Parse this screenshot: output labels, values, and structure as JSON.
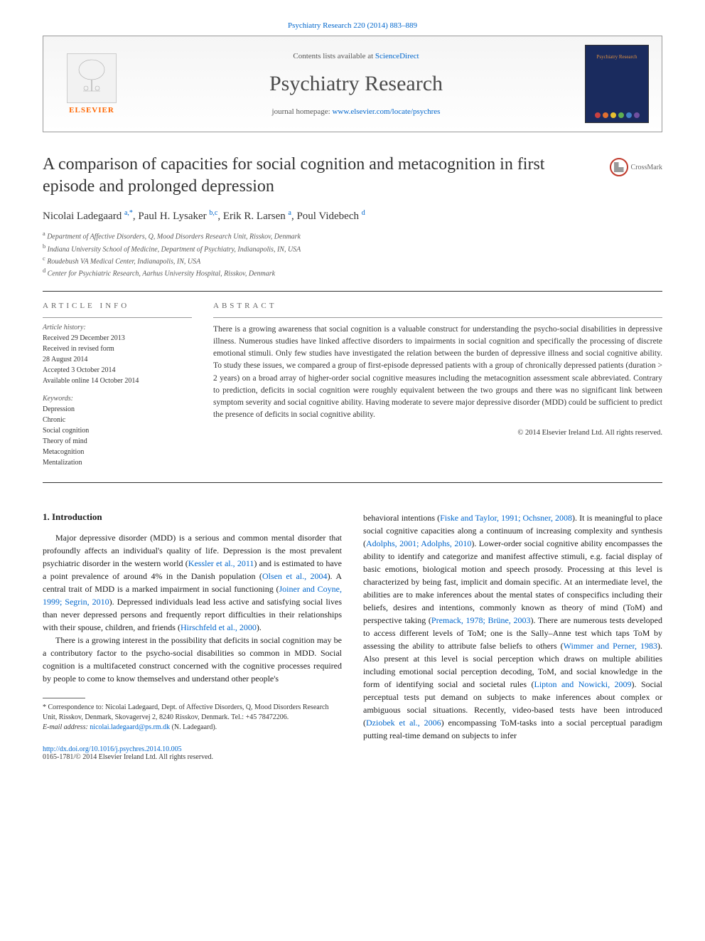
{
  "top_citation": "Psychiatry Research 220 (2014) 883–889",
  "header": {
    "contents_prefix": "Contents lists available at ",
    "contents_link": "ScienceDirect",
    "journal": "Psychiatry Research",
    "homepage_prefix": "journal homepage: ",
    "homepage_link": "www.elsevier.com/locate/psychres",
    "publisher": "ELSEVIER",
    "cover_title": "Psychiatry Research",
    "cover_dot_colors": [
      "#c94040",
      "#e07030",
      "#e8c030",
      "#60b050",
      "#4080c8",
      "#7050a0"
    ]
  },
  "crossmark_label": "CrossMark",
  "title": "A comparison of capacities for social cognition and metacognition in first episode and prolonged depression",
  "authors_html": "Nicolai Ladegaard <sup>a,*</sup>, Paul H. Lysaker <sup>b,c</sup>, Erik R. Larsen <sup>a</sup>, Poul Videbech <sup>d</sup>",
  "affiliations": [
    "a Department of Affective Disorders, Q, Mood Disorders Research Unit, Risskov, Denmark",
    "b Indiana University School of Medicine, Department of Psychiatry, Indianapolis, IN, USA",
    "c Roudebush VA Medical Center, Indianapolis, IN, USA",
    "d Center for Psychiatric Research, Aarhus University Hospital, Risskov, Denmark"
  ],
  "article_info": {
    "header": "ARTICLE INFO",
    "history_label": "Article history:",
    "history": "Received 29 December 2013\nReceived in revised form\n28 August 2014\nAccepted 3 October 2014\nAvailable online 14 October 2014",
    "keywords_label": "Keywords:",
    "keywords": "Depression\nChronic\nSocial cognition\nTheory of mind\nMetacognition\nMentalization"
  },
  "abstract": {
    "header": "ABSTRACT",
    "text": "There is a growing awareness that social cognition is a valuable construct for understanding the psycho-social disabilities in depressive illness. Numerous studies have linked affective disorders to impairments in social cognition and specifically the processing of discrete emotional stimuli. Only few studies have investigated the relation between the burden of depressive illness and social cognitive ability. To study these issues, we compared a group of first-episode depressed patients with a group of chronically depressed patients (duration > 2 years) on a broad array of higher-order social cognitive measures including the metacognition assessment scale abbreviated. Contrary to prediction, deficits in social cognition were roughly equivalent between the two groups and there was no significant link between symptom severity and social cognitive ability. Having moderate to severe major depressive disorder (MDD) could be sufficient to predict the presence of deficits in social cognitive ability.",
    "copyright": "© 2014 Elsevier Ireland Ltd. All rights reserved."
  },
  "intro": {
    "heading": "1.  Introduction",
    "para1_pre": "Major depressive disorder (MDD) is a serious and common mental disorder that profoundly affects an individual's quality of life. Depression is the most prevalent psychiatric disorder in the western world (",
    "para1_link1": "Kessler et al., 2011",
    "para1_mid1": ") and is estimated to have a point prevalence of around 4% in the Danish population (",
    "para1_link2": "Olsen et al., 2004",
    "para1_mid2": "). A central trait of MDD is a marked impairment in social functioning (",
    "para1_link3": "Joiner and Coyne, 1999; Segrin, 2010",
    "para1_mid3": "). Depressed individuals lead less active and satisfying social lives than never depressed persons and frequently report difficulties in their relationships with their spouse, children, and friends (",
    "para1_link4": "Hirschfeld et al., 2000",
    "para1_end": ").",
    "para2": "There is a growing interest in the possibility that deficits in social cognition may be a contributory factor to the psycho-social disabilities so common in MDD. Social cognition is a multifaceted construct concerned with the cognitive processes required by people to come to know themselves and understand other people's",
    "col2_pre": "behavioral intentions (",
    "col2_link1": "Fiske and Taylor, 1991; Ochsner, 2008",
    "col2_mid1": "). It is meaningful to place social cognitive capacities along a continuum of increasing complexity and synthesis (",
    "col2_link2": "Adolphs, 2001; Adolphs, 2010",
    "col2_mid2": "). Lower-order social cognitive ability encompasses the ability to identify and categorize and manifest affective stimuli, e.g. facial display of basic emotions, biological motion and speech prosody. Processing at this level is characterized by being fast, implicit and domain specific. At an intermediate level, the abilities are to make inferences about the mental states of conspecifics including their beliefs, desires and intentions, commonly known as theory of mind (ToM) and perspective taking (",
    "col2_link3": "Premack, 1978; Brüne, 2003",
    "col2_mid3": "). There are numerous tests developed to access different levels of ToM; one is the Sally–Anne test which taps ToM by assessing the ability to attribute false beliefs to others (",
    "col2_link4": "Wimmer and Perner, 1983",
    "col2_mid4": "). Also present at this level is social perception which draws on multiple abilities including emotional social perception decoding, ToM, and social knowledge in the form of identifying social and societal rules (",
    "col2_link5": "Lipton and Nowicki, 2009",
    "col2_mid5": "). Social perceptual tests put demand on subjects to make inferences about complex or ambiguous social situations. Recently, video-based tests have been introduced (",
    "col2_link6": "Dziobek et al., 2006",
    "col2_end": ") encompassing ToM-tasks into a social perceptual paradigm putting real-time demand on subjects to infer"
  },
  "footnote": {
    "corr": "* Correspondence to: Nicolai Ladegaard, Dept. of Affective Disorders, Q, Mood Disorders Research Unit, Risskov, Denmark, Skovagervej 2, 8240 Risskov, Denmark. Tel.: +45 78472206.",
    "email_label": "E-mail address: ",
    "email": "nicolai.ladegaard@ps.rm.dk",
    "email_suffix": " (N. Ladegaard)."
  },
  "doi": {
    "link": "http://dx.doi.org/10.1016/j.psychres.2014.10.005",
    "issn": "0165-1781/© 2014 Elsevier Ireland Ltd. All rights reserved."
  },
  "colors": {
    "link": "#0066cc",
    "elsevier_orange": "#ff6600",
    "crossmark_ring": "#c0392b"
  }
}
